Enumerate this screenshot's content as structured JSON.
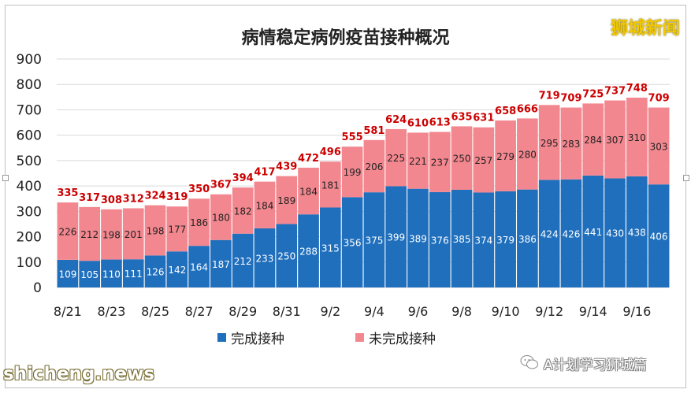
{
  "title": "病情稳定病例疫苗接种概况",
  "brand": "狮城新闻",
  "watermark_left": "shicheng.news",
  "watermark_right": "A计划学习狮城篇",
  "colors": {
    "completed": "#1f6fbd",
    "not_completed": "#f3878f",
    "total_label": "#cc0000",
    "grid": "#d9d9d9"
  },
  "chart_data": {
    "type": "bar",
    "stacked": true,
    "title": "病情稳定病例疫苗接种概况",
    "categories": [
      "8/21",
      "8/22",
      "8/23",
      "8/24",
      "8/25",
      "8/26",
      "8/27",
      "8/28",
      "8/29",
      "8/30",
      "8/31",
      "9/1",
      "9/2",
      "9/3",
      "9/4",
      "9/5",
      "9/6",
      "9/7",
      "9/8",
      "9/9",
      "9/10",
      "9/11",
      "9/12",
      "9/13",
      "9/14",
      "9/15",
      "9/16",
      "9/17"
    ],
    "x_tick_labels": [
      "8/21",
      "8/23",
      "8/25",
      "8/27",
      "8/29",
      "8/31",
      "9/2",
      "9/4",
      "9/6",
      "9/8",
      "9/10",
      "9/12",
      "9/14",
      "9/16"
    ],
    "series": [
      {
        "name": "完成接种",
        "values": [
          109,
          105,
          110,
          111,
          126,
          142,
          164,
          187,
          212,
          233,
          250,
          288,
          315,
          356,
          375,
          399,
          389,
          376,
          385,
          374,
          379,
          386,
          424,
          426,
          441,
          430,
          438,
          406
        ]
      },
      {
        "name": "未完成接种",
        "values": [
          226,
          212,
          198,
          201,
          198,
          177,
          186,
          180,
          182,
          184,
          189,
          184,
          181,
          199,
          206,
          225,
          221,
          237,
          250,
          257,
          279,
          280,
          295,
          283,
          284,
          307,
          310,
          303
        ]
      }
    ],
    "totals": [
      335,
      317,
      308,
      312,
      324,
      319,
      350,
      367,
      394,
      417,
      439,
      472,
      496,
      555,
      581,
      624,
      610,
      613,
      635,
      631,
      658,
      666,
      719,
      709,
      725,
      737,
      748,
      709
    ],
    "ylim": [
      0,
      900
    ],
    "yticks": [
      0,
      100,
      200,
      300,
      400,
      500,
      600,
      700,
      800,
      900
    ],
    "grid": true,
    "legend_position": "bottom"
  }
}
